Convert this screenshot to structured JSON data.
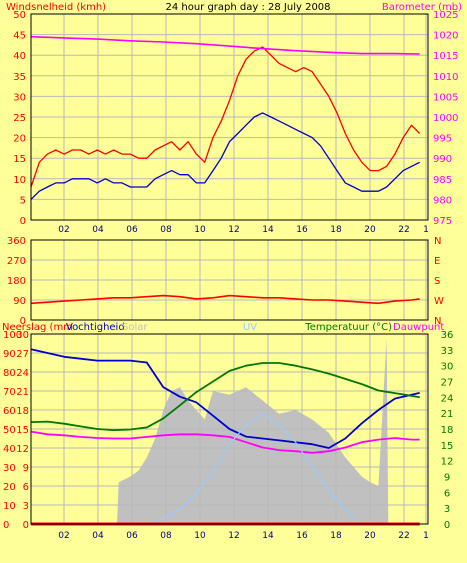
{
  "chart_data": [
    {
      "type": "line",
      "title": "24 hour graph day : 28 July 2008",
      "x_tick_labels": [
        "02",
        "04",
        "06",
        "08",
        "10",
        "12",
        "14",
        "16",
        "18",
        "20",
        "22",
        "1"
      ],
      "series": [
        {
          "name": "Windsnelheid (kmh)",
          "axis": "left",
          "color": "#ff0000",
          "x": [
            0,
            0.5,
            1,
            1.5,
            2,
            2.5,
            3,
            3.5,
            4,
            4.5,
            5,
            5.5,
            6,
            6.5,
            7,
            7.5,
            8,
            8.5,
            9,
            9.5,
            10,
            10.5,
            11,
            11.5,
            12,
            12.5,
            13,
            13.5,
            14,
            14.5,
            15,
            15.5,
            16,
            16.5,
            17,
            17.5,
            18,
            18.5,
            19,
            19.5,
            20,
            20.5,
            21,
            21.5,
            22,
            22.5,
            23,
            23.5
          ],
          "values": [
            8,
            14,
            16,
            17,
            16,
            17,
            17,
            16,
            17,
            16,
            17,
            16,
            16,
            15,
            15,
            17,
            18,
            19,
            17,
            19,
            16,
            14,
            20,
            24,
            29,
            35,
            39,
            41,
            42,
            40,
            38,
            37,
            36,
            37,
            36,
            33,
            30,
            26,
            21,
            17,
            14,
            12,
            12,
            13,
            16,
            20,
            23,
            21
          ]
        },
        {
          "name": "Windsnelheid gemiddeld",
          "axis": "left",
          "color": "#0000cc",
          "x": [
            0,
            0.5,
            1,
            1.5,
            2,
            2.5,
            3,
            3.5,
            4,
            4.5,
            5,
            5.5,
            6,
            6.5,
            7,
            7.5,
            8,
            8.5,
            9,
            9.5,
            10,
            10.5,
            11,
            11.5,
            12,
            12.5,
            13,
            13.5,
            14,
            14.5,
            15,
            15.5,
            16,
            16.5,
            17,
            17.5,
            18,
            18.5,
            19,
            19.5,
            20,
            20.5,
            21,
            21.5,
            22,
            22.5,
            23,
            23.5
          ],
          "values": [
            5,
            7,
            8,
            9,
            9,
            10,
            10,
            10,
            9,
            10,
            9,
            9,
            8,
            8,
            8,
            10,
            11,
            12,
            11,
            11,
            9,
            9,
            12,
            15,
            19,
            21,
            23,
            25,
            26,
            25,
            24,
            23,
            22,
            21,
            20,
            18,
            15,
            12,
            9,
            8,
            7,
            7,
            7,
            8,
            10,
            12,
            13,
            14
          ]
        },
        {
          "name": "Barometer (mb)",
          "axis": "right",
          "color": "#ff00ff",
          "x": [
            0,
            2,
            4,
            6,
            8,
            10,
            12,
            14,
            16,
            18,
            20,
            22,
            23.5
          ],
          "values": [
            1019.5,
            1019.2,
            1018.9,
            1018.5,
            1018.2,
            1017.8,
            1017.2,
            1016.6,
            1016.1,
            1015.7,
            1015.4,
            1015.4,
            1015.3
          ]
        }
      ],
      "y_left": {
        "label": "Windsnelheid (kmh)",
        "ticks": [
          0,
          5,
          10,
          15,
          20,
          25,
          30,
          35,
          40,
          45,
          50
        ],
        "ylim": [
          0,
          50
        ]
      },
      "y_right": {
        "label": "Barometer (mb)",
        "ticks": [
          975,
          980,
          985,
          990,
          995,
          1000,
          1005,
          1010,
          1015,
          1020,
          1025
        ],
        "ylim": [
          975,
          1025
        ]
      },
      "grid": true
    },
    {
      "type": "line",
      "series": [
        {
          "name": "Windrichting",
          "color": "#ff0000",
          "x": [
            0,
            1,
            2,
            3,
            4,
            5,
            6,
            7,
            8,
            9,
            10,
            11,
            12,
            13,
            14,
            15,
            16,
            17,
            18,
            19,
            20,
            21,
            22,
            23,
            23.5
          ],
          "values": [
            75,
            80,
            85,
            90,
            95,
            100,
            100,
            105,
            110,
            105,
            95,
            100,
            110,
            105,
            100,
            100,
            95,
            90,
            90,
            85,
            80,
            75,
            85,
            90,
            95
          ]
        }
      ],
      "y_left": {
        "ticks": [
          0,
          90,
          180,
          270,
          360
        ],
        "ylim": [
          0,
          360
        ]
      },
      "y_right": {
        "ticks": [
          "N",
          "E",
          "S",
          "W",
          "N"
        ]
      },
      "grid": true
    },
    {
      "type": "area",
      "labels": {
        "left_1": "Neerslag (mm",
        "left_2": "Vochtigheid",
        "solar": "Solar",
        "uv": "UV",
        "right_1": "Temperatuur (°C)",
        "right_2": "Dauwpunt"
      },
      "series": [
        {
          "name": "Solar",
          "kind": "area",
          "color": "#c0c0c0",
          "scale": "left_humidity",
          "x": [
            0,
            5.2,
            5.3,
            6,
            6.5,
            7,
            7.5,
            8,
            8.5,
            9,
            9.5,
            10,
            10.5,
            11,
            12,
            13,
            14,
            15,
            16,
            17,
            18,
            19,
            20,
            20.5,
            21,
            21.5,
            21.6,
            23.5
          ],
          "values": [
            0,
            0,
            22,
            25,
            28,
            35,
            45,
            60,
            70,
            72,
            65,
            60,
            55,
            70,
            68,
            72,
            65,
            58,
            60,
            55,
            48,
            35,
            25,
            22,
            20,
            98,
            0,
            0
          ]
        },
        {
          "name": "Vochtigheid",
          "color": "#0000cc",
          "scale": "left_humidity",
          "x": [
            0,
            1,
            2,
            3,
            4,
            5,
            6,
            7,
            8,
            9,
            10,
            11,
            12,
            13,
            14,
            15,
            16,
            17,
            18,
            19,
            20,
            21,
            22,
            23,
            23.5
          ],
          "values": [
            92,
            90,
            88,
            87,
            86,
            86,
            86,
            85,
            72,
            67,
            64,
            57,
            50,
            46,
            45,
            44,
            43,
            42,
            40,
            45,
            53,
            60,
            66,
            68,
            69
          ]
        },
        {
          "name": "Temperatuur",
          "color": "#007700",
          "scale": "right_temp",
          "x": [
            0,
            1,
            2,
            3,
            4,
            5,
            6,
            7,
            8,
            9,
            10,
            11,
            12,
            13,
            14,
            15,
            16,
            17,
            18,
            19,
            20,
            21,
            22,
            23,
            23.5
          ],
          "values": [
            19.3,
            19.4,
            19.0,
            18.5,
            18.0,
            17.8,
            17.9,
            18.3,
            20.0,
            22.5,
            25.0,
            27.0,
            29.0,
            30.0,
            30.5,
            30.5,
            30.0,
            29.3,
            28.5,
            27.5,
            26.5,
            25.3,
            24.8,
            24.3,
            24.0
          ]
        },
        {
          "name": "Dauwpunt",
          "color": "#ff00ff",
          "scale": "right_temp",
          "x": [
            0,
            1,
            2,
            3,
            4,
            5,
            6,
            7,
            8,
            9,
            10,
            11,
            12,
            13,
            14,
            15,
            16,
            17,
            18,
            19,
            20,
            21,
            22,
            23,
            23.5
          ],
          "values": [
            17.5,
            17.0,
            16.8,
            16.5,
            16.3,
            16.2,
            16.2,
            16.5,
            16.8,
            17.0,
            17.0,
            16.8,
            16.5,
            15.5,
            14.5,
            14.0,
            13.8,
            13.5,
            13.8,
            14.5,
            15.5,
            16.0,
            16.3,
            16.0,
            16.0
          ]
        },
        {
          "name": "UV",
          "color": "#99ccff",
          "scale": "left_humidity",
          "x": [
            0,
            7,
            8,
            9,
            10,
            11,
            12,
            13,
            14,
            15,
            16,
            17,
            18,
            19,
            20,
            23.5
          ],
          "values": [
            0,
            0,
            3,
            8,
            16,
            28,
            42,
            52,
            58,
            52,
            43,
            30,
            18,
            8,
            0,
            0
          ]
        },
        {
          "name": "Neerslag",
          "color": "#ff0000",
          "scale": "left_rain",
          "x": [
            0,
            23.5
          ],
          "values": [
            0,
            0
          ]
        }
      ],
      "y_left_rain": {
        "ticks": [
          0,
          3,
          6,
          9,
          12,
          15,
          18,
          21,
          24,
          27,
          30
        ],
        "ylim": [
          0,
          30
        ]
      },
      "y_left_humidity": {
        "ticks": [
          0,
          10,
          20,
          30,
          40,
          50,
          60,
          70,
          80,
          90,
          100
        ],
        "ylim": [
          0,
          100
        ]
      },
      "y_right": {
        "ticks": [
          0,
          3,
          6,
          9,
          12,
          15,
          18,
          21,
          24,
          27,
          30,
          33,
          36
        ],
        "ylim": [
          0,
          36
        ]
      },
      "grid": true
    }
  ]
}
